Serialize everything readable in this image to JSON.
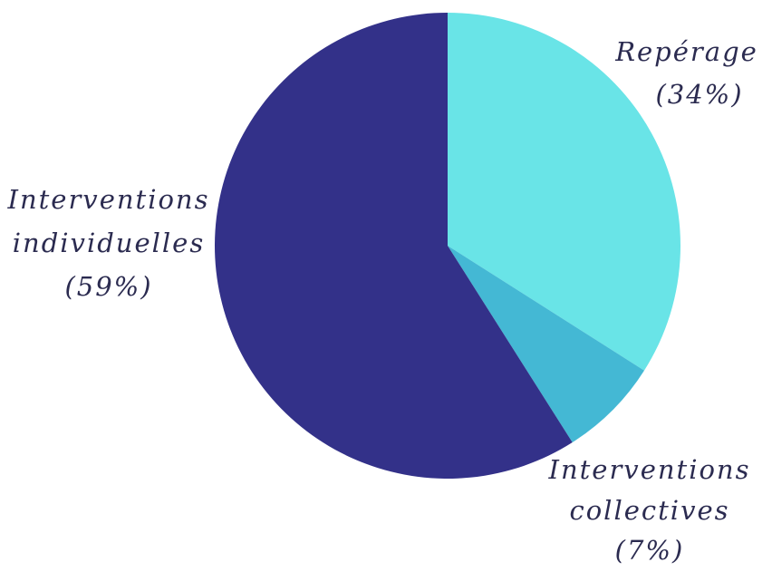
{
  "chart_data": {
    "type": "pie",
    "start_angle_deg": 0,
    "direction": "clockwise",
    "slices": [
      {
        "label": "Repérage",
        "percent_text": "(34%)",
        "value": 34,
        "color": "#69E4E7"
      },
      {
        "label": "Interventions collectives",
        "label_lines": [
          "Interventions",
          "collectives"
        ],
        "percent_text": "(7%)",
        "value": 7,
        "color": "#44B8D4"
      },
      {
        "label": "Interventions individuelles",
        "label_lines": [
          "Interventions",
          "individuelles"
        ],
        "percent_text": "(59%)",
        "value": 59,
        "color": "#333189"
      }
    ]
  }
}
